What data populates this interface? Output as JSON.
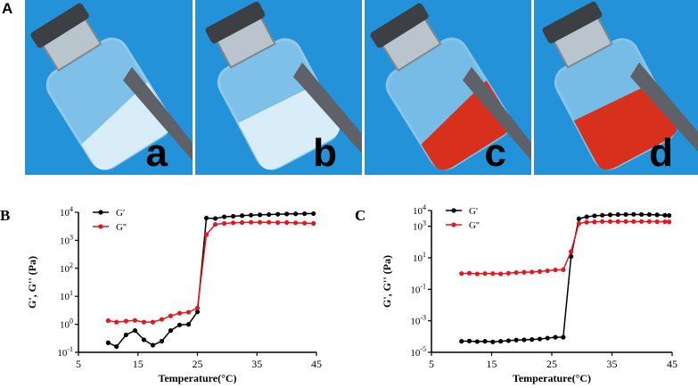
{
  "panels": {
    "A": "A",
    "B": "B",
    "C": "C"
  },
  "photos": [
    {
      "label": "a",
      "liquid": "clear",
      "state": "solution"
    },
    {
      "label": "b",
      "liquid": "clear",
      "state": "gel"
    },
    {
      "label": "c",
      "liquid": "red",
      "state": "solution"
    },
    {
      "label": "d",
      "liquid": "red",
      "state": "gel"
    }
  ],
  "colors": {
    "photo_bg": "#1f8fd6",
    "series_g_prime": "#000000",
    "series_g_double_prime": "#e8141e",
    "red_liquid": "#d7301c"
  },
  "chart_data": [
    {
      "id": "B",
      "type": "line",
      "xlabel": "Temperature(°C)",
      "ylabel": "G', G'' (Pa)",
      "xlim": [
        5,
        45
      ],
      "xticks": [
        5,
        15,
        25,
        35,
        45
      ],
      "y_scale": "log",
      "ylim": [
        0.1,
        10000
      ],
      "yticks": [
        {
          "value": 0.1,
          "base": "10",
          "exp": "-1"
        },
        {
          "value": 1,
          "base": "10",
          "exp": "0"
        },
        {
          "value": 10,
          "base": "10",
          "exp": "1"
        },
        {
          "value": 100,
          "base": "10",
          "exp": "2"
        },
        {
          "value": 1000,
          "base": "10",
          "exp": "3"
        },
        {
          "value": 10000,
          "base": "10",
          "exp": "4"
        }
      ],
      "legend": "top-left",
      "series": [
        {
          "name": "G'",
          "color": "#000000",
          "x": [
            10,
            11.4,
            13,
            14.5,
            16,
            17.5,
            19,
            20.5,
            22,
            23.5,
            25,
            26.5,
            28,
            29.5,
            31,
            32.5,
            34,
            35.5,
            37,
            38.5,
            40,
            41.5,
            43,
            44.5
          ],
          "y": [
            0.22,
            0.16,
            0.42,
            0.6,
            0.28,
            0.18,
            0.25,
            0.6,
            0.95,
            1.0,
            2.8,
            6200,
            6000,
            6900,
            7200,
            7600,
            7900,
            8100,
            8300,
            8500,
            8700,
            8800,
            8900,
            9000
          ]
        },
        {
          "name": "G''",
          "color": "#e8141e",
          "x": [
            10,
            11.4,
            13,
            14.5,
            16,
            17.5,
            19,
            20.5,
            22,
            23.5,
            25,
            26.5,
            28,
            29.5,
            31,
            32.5,
            34,
            35.5,
            37,
            38.5,
            40,
            41.5,
            43,
            44.5
          ],
          "y": [
            1.35,
            1.2,
            1.3,
            1.38,
            1.2,
            1.2,
            1.5,
            2.0,
            2.5,
            2.7,
            3.8,
            1600,
            3700,
            4000,
            4200,
            4300,
            4400,
            4400,
            4400,
            4300,
            4300,
            4200,
            4100,
            4000
          ]
        }
      ]
    },
    {
      "id": "C",
      "type": "line",
      "xlabel": "Temperature(°C)",
      "ylabel": "G', G'' (Pa)",
      "xlim": [
        5,
        45
      ],
      "xticks": [
        5,
        15,
        25,
        35,
        45
      ],
      "y_scale": "log",
      "ylim": [
        1e-05,
        10000
      ],
      "yticks": [
        {
          "value": 1e-05,
          "base": "10",
          "exp": "-5"
        },
        {
          "value": 0.001,
          "base": "10",
          "exp": "-3"
        },
        {
          "value": 0.1,
          "base": "10",
          "exp": "-1"
        },
        {
          "value": 10,
          "base": "10",
          "exp": "1"
        },
        {
          "value": 1000,
          "base": "10",
          "exp": "3"
        },
        {
          "value": 10000,
          "base": "10",
          "exp": "4"
        }
      ],
      "legend": "top-left",
      "series": [
        {
          "name": "G'",
          "color": "#000000",
          "x": [
            10,
            11.3,
            12.6,
            13.9,
            15.2,
            16.5,
            17.8,
            19.1,
            20.4,
            21.7,
            23,
            24.3,
            25.6,
            26.9,
            28.2,
            29.5,
            30.8,
            32.1,
            33.4,
            34.7,
            36,
            37.3,
            38.6,
            39.9,
            41.2,
            42.5,
            43.8,
            44.5
          ],
          "y": [
            5e-05,
            5.2e-05,
            4.8e-05,
            5e-05,
            4.6e-05,
            5e-05,
            5.5e-05,
            6e-05,
            6.2e-05,
            6.5e-05,
            7e-05,
            8e-05,
            9e-05,
            9e-05,
            12,
            3000,
            4000,
            4600,
            5000,
            5300,
            5500,
            5600,
            5700,
            5600,
            5500,
            5300,
            5000,
            4800
          ]
        },
        {
          "name": "G''",
          "color": "#e8141e",
          "x": [
            10,
            11.3,
            12.6,
            13.9,
            15.2,
            16.5,
            17.8,
            19.1,
            20.4,
            21.7,
            23,
            24.3,
            25.6,
            26.9,
            28.2,
            29.5,
            30.8,
            32.1,
            33.4,
            34.7,
            36,
            37.3,
            38.6,
            39.9,
            41.2,
            42.5,
            43.8,
            44.5
          ],
          "y": [
            1.0,
            1.05,
            0.95,
            1.0,
            1.0,
            0.95,
            1.05,
            1.15,
            1.2,
            1.25,
            1.35,
            1.5,
            1.7,
            1.75,
            25,
            1500,
            1800,
            1900,
            2000,
            2000,
            2000,
            2000,
            2000,
            2000,
            2000,
            1950,
            1950,
            1900
          ]
        }
      ]
    }
  ]
}
